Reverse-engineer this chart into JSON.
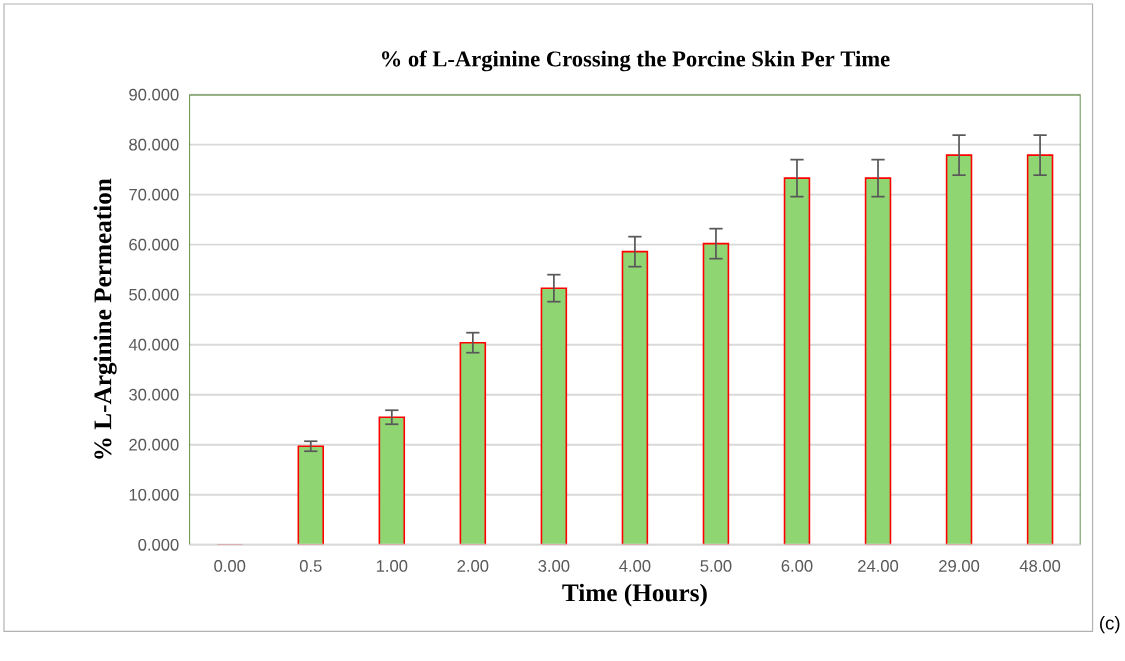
{
  "chart_data": {
    "type": "bar",
    "title": "% of L-Arginine Crossing the Porcine Skin Per Time",
    "xlabel": "Time (Hours)",
    "ylabel": "% L-Arginine Permeation",
    "categories": [
      "0.00",
      "0.5",
      "1.00",
      "2.00",
      "3.00",
      "4.00",
      "5.00",
      "6.00",
      "24.00",
      "29.00",
      "48.00"
    ],
    "values": [
      0,
      19.7,
      25.5,
      40.4,
      51.3,
      58.6,
      60.2,
      73.3,
      73.3,
      77.9,
      77.9
    ],
    "errors": [
      null,
      1.0,
      1.4,
      2.0,
      2.7,
      3.0,
      3.0,
      3.7,
      3.7,
      4.0,
      4.0
    ],
    "color": "#8fd673",
    "ylim": [
      0,
      90
    ],
    "yticks": [
      {
        "value": 0,
        "label": "0.000"
      },
      {
        "value": 10,
        "label": "10.000"
      },
      {
        "value": 20,
        "label": "20.000"
      },
      {
        "value": 30,
        "label": "30.000"
      },
      {
        "value": 40,
        "label": "40.000"
      },
      {
        "value": 50,
        "label": "50.000"
      },
      {
        "value": 60,
        "label": "60.000"
      },
      {
        "value": 70,
        "label": "70.000"
      },
      {
        "value": 80,
        "label": "80.000"
      },
      {
        "value": 90,
        "label": "90.000"
      }
    ],
    "grid": "y",
    "annotations": [
      "(c)"
    ]
  }
}
